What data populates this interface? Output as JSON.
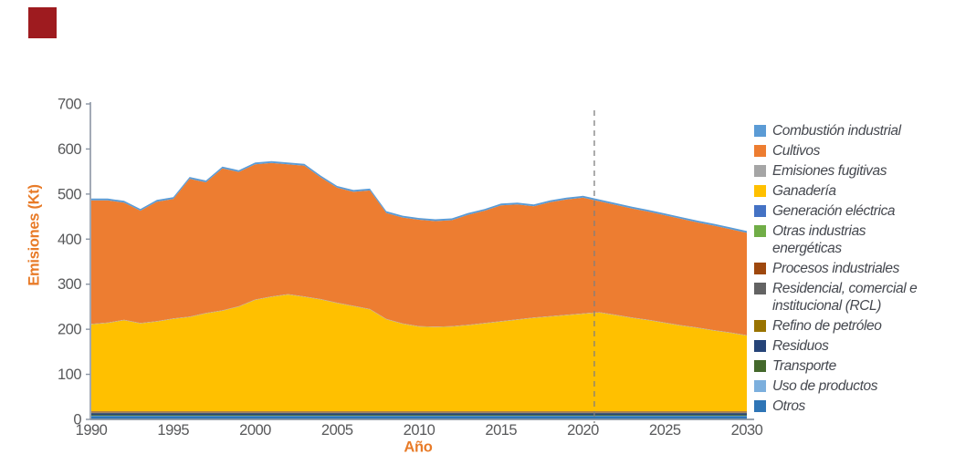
{
  "page": {
    "background": "#ffffff"
  },
  "decor": {
    "corner_mark_color": "#9e1b1f"
  },
  "chart_data": {
    "type": "area",
    "stacked": true,
    "title": "",
    "xlabel": "Año",
    "ylabel": "Emisiones (Kt)",
    "x_start": 1990,
    "x_end": 2030,
    "ylim": [
      0,
      700
    ],
    "y_ticks": [
      0,
      100,
      200,
      300,
      400,
      500,
      600,
      700
    ],
    "x_ticks": [
      1990,
      1995,
      2000,
      2005,
      2010,
      2015,
      2020,
      2025,
      2030
    ],
    "grid": false,
    "legend_position": "right",
    "projection_divider_year": 2021,
    "axis_color": "#8a94a3",
    "divider_color": "#7f7f7f",
    "tick_label_color": "#58595b",
    "axis_title_color": "#e87b28",
    "legend_text_color": "#45484f",
    "series": [
      {
        "name": "otros",
        "label": "Otros",
        "color": "#2E75B6",
        "values": 7
      },
      {
        "name": "uso-de-productos",
        "label": "Uso de productos",
        "color": "#7CAFDD",
        "values": 1
      },
      {
        "name": "transporte",
        "label": "Transporte",
        "color": "#43682B",
        "values": 2
      },
      {
        "name": "residuos",
        "label": "Residuos",
        "color": "#264478",
        "values": 4
      },
      {
        "name": "refino-de-petroleo",
        "label": "Refino de petróleo",
        "color": "#997300",
        "values": 0.5
      },
      {
        "name": "rcl",
        "label": "Residencial, comercial e institucional (RCL)",
        "color": "#636363",
        "values": 1
      },
      {
        "name": "procesos-industriales",
        "label": "Procesos industriales",
        "color": "#9E480E",
        "values": 2
      },
      {
        "name": "otras-industrias-energeticas",
        "label": "Otras industrias energéticas",
        "color": "#70AD47",
        "values": 0.25
      },
      {
        "name": "generacion-electrica",
        "label": "Generación eléctrica",
        "color": "#4472C4",
        "values": 0.25
      },
      {
        "name": "ganaderia",
        "label": "Ganadería",
        "color": "#FFC000",
        "values": [
          193,
          196,
          202,
          195,
          199,
          205,
          209,
          217,
          223,
          232,
          247,
          254,
          259,
          254,
          248,
          240,
          233,
          226,
          204,
          194,
          188,
          187,
          188,
          191,
          195,
          199,
          203,
          207,
          210,
          213,
          216,
          219,
          213,
          207,
          202,
          196,
          190,
          185,
          179,
          174,
          168
        ]
      },
      {
        "name": "emisiones-fugitivas",
        "label": "Emisiones fugitivas",
        "color": "#A5A5A5",
        "values": 1
      },
      {
        "name": "cultivos",
        "label": "Cultivos",
        "color": "#ED7D31",
        "values": [
          274,
          271,
          260,
          249,
          265,
          265,
          306,
          290,
          315,
          298,
          300,
          296,
          288,
          290,
          270,
          255,
          253,
          263,
          235,
          235,
          236,
          234,
          235,
          244,
          249,
          257,
          255,
          247,
          253,
          256,
          257,
          246,
          244,
          242,
          240,
          238,
          236,
          233,
          232,
          229,
          227
        ]
      },
      {
        "name": "combustion-industrial",
        "label": "Combustión industrial",
        "color": "#5B9BD5",
        "values": 4
      }
    ],
    "legend": [
      {
        "label": "Combustión industrial",
        "color": "#5B9BD5"
      },
      {
        "label": "Cultivos",
        "color": "#ED7D31"
      },
      {
        "label": "Emisiones fugitivas",
        "color": "#A5A5A5"
      },
      {
        "label": "Ganadería",
        "color": "#FFC000"
      },
      {
        "label": "Generación eléctrica",
        "color": "#4472C4"
      },
      {
        "label": "Otras industrias energéticas",
        "color": "#70AD47"
      },
      {
        "label": "Procesos industriales",
        "color": "#9E480E"
      },
      {
        "label": "Residencial, comercial e institucional (RCL)",
        "color": "#636363"
      },
      {
        "label": "Refino de petróleo",
        "color": "#997300"
      },
      {
        "label": "Residuos",
        "color": "#264478"
      },
      {
        "label": "Transporte",
        "color": "#43682B"
      },
      {
        "label": "Uso de productos",
        "color": "#7CAFDD"
      },
      {
        "label": "Otros",
        "color": "#2E75B6"
      }
    ]
  }
}
